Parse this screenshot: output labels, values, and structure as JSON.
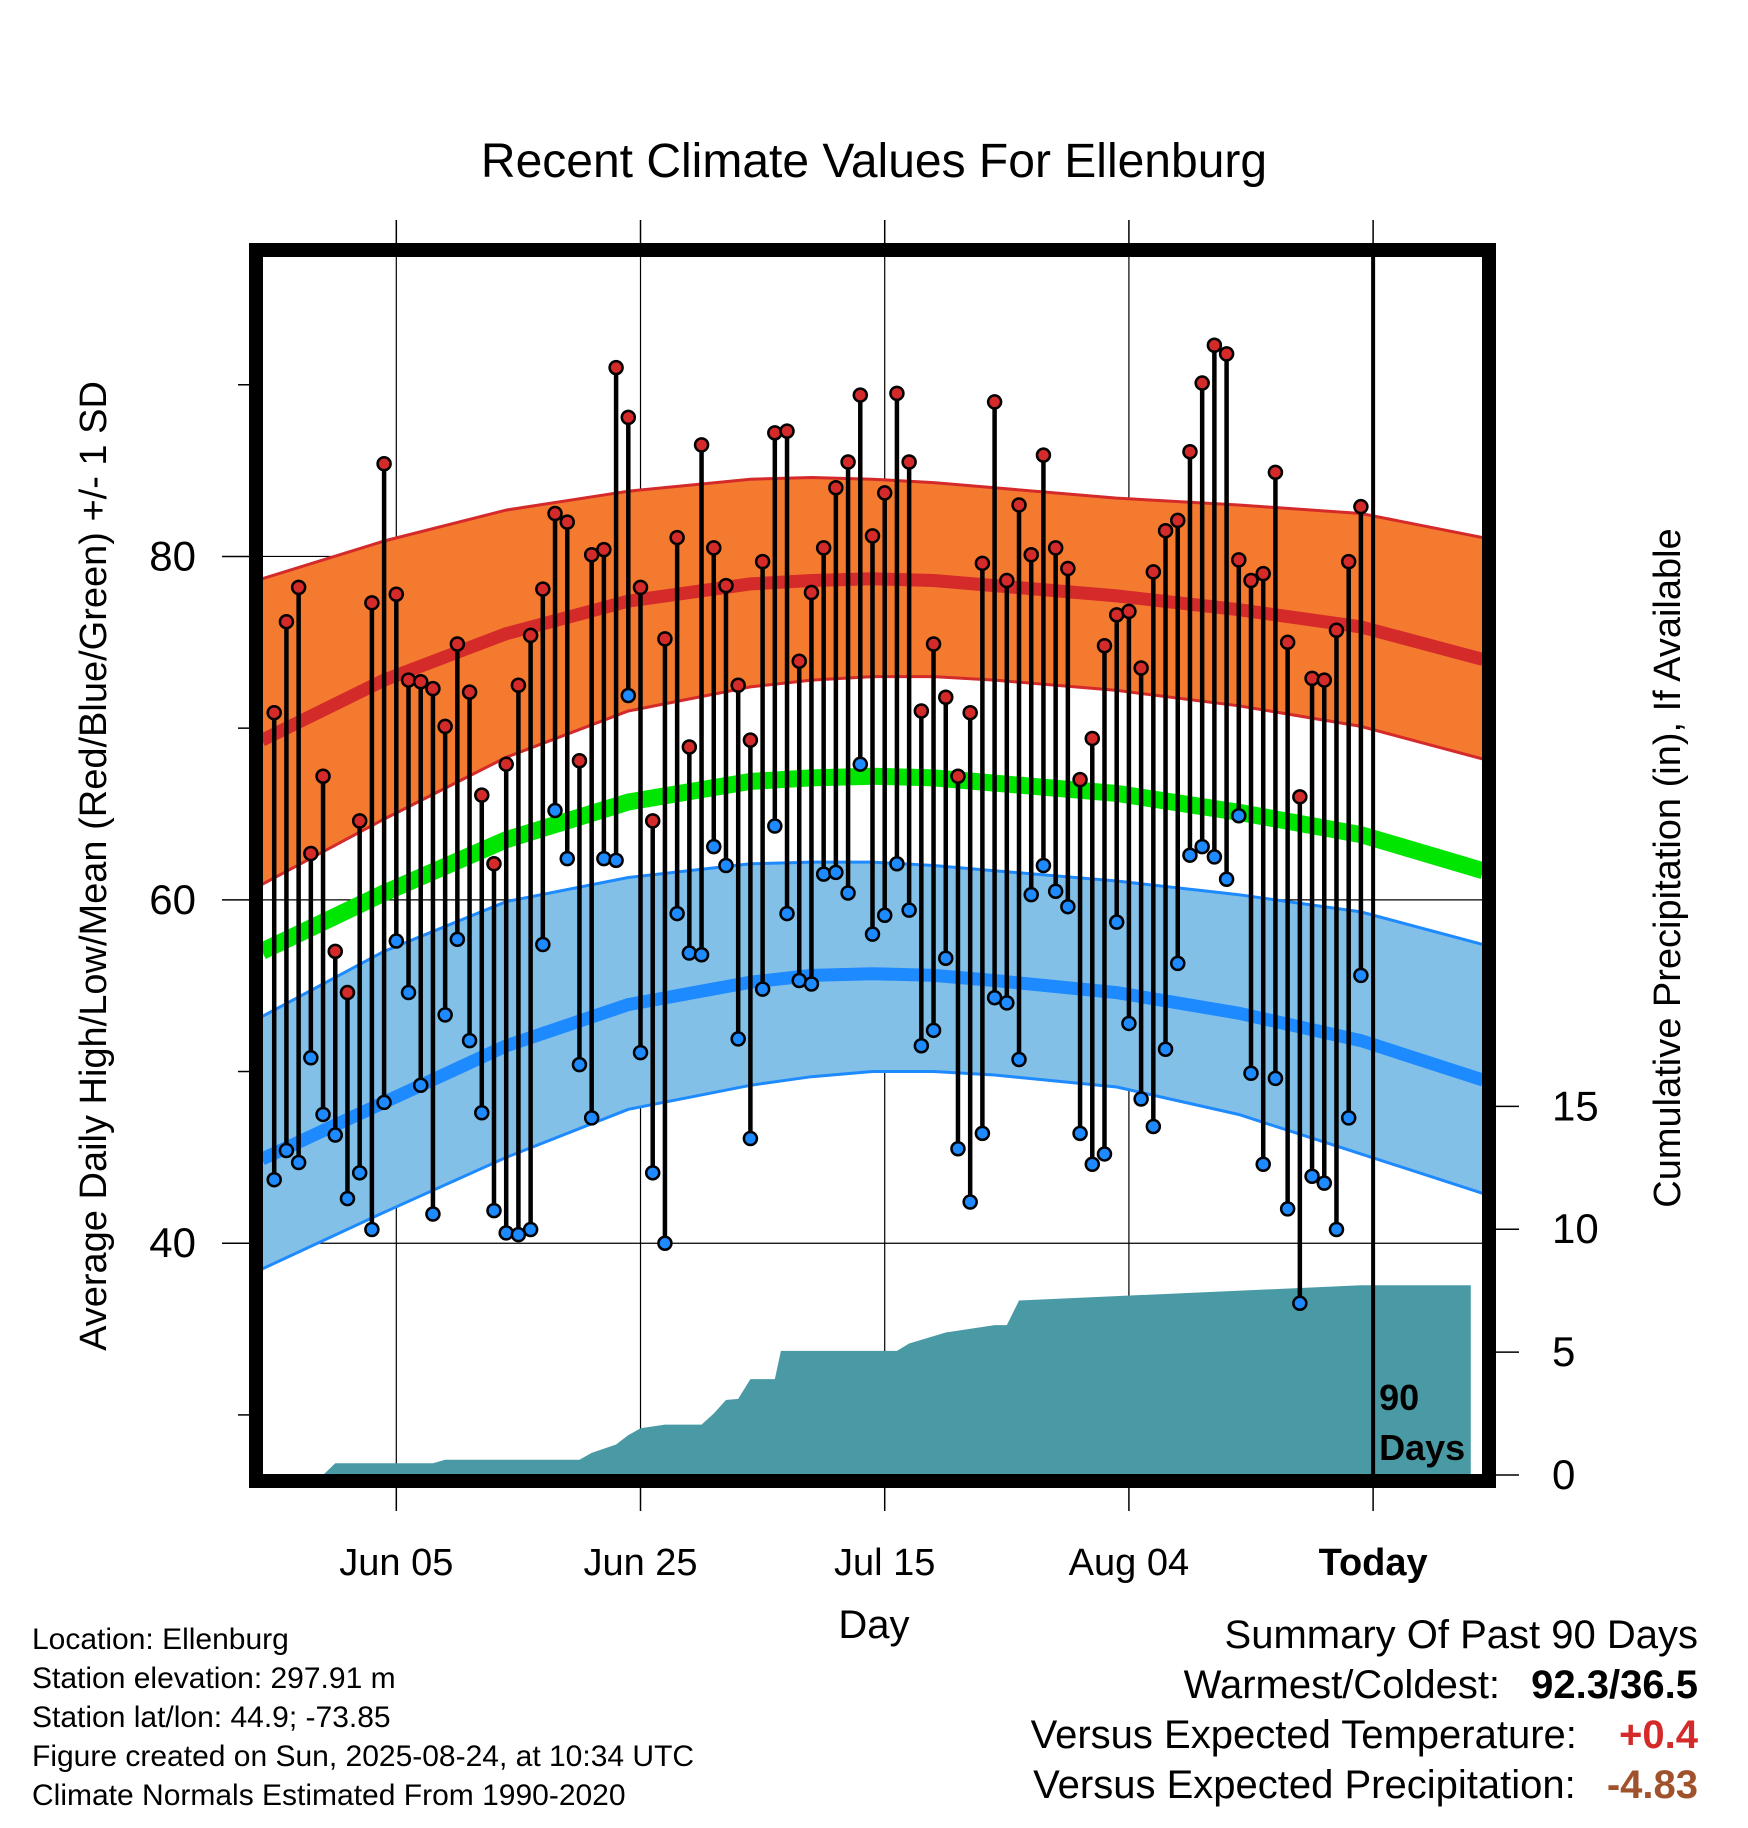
{
  "title": "Recent Climate Values For Ellenburg",
  "colors": {
    "high_band": "#f47a30",
    "high_mean": "#d42a2a",
    "low_band": "#82c0e8",
    "low_mean": "#1e8aff",
    "mean": "#00e600",
    "precip": "#4a9aa5",
    "high_point": "#d42a2a",
    "low_point": "#1e8aff",
    "temp_anomaly": "#d42a2a",
    "precip_anomaly": "#a0522d"
  },
  "chart_data": {
    "type": "line",
    "title": "Recent Climate Values For Ellenburg",
    "xlabel": "Day",
    "ylabel": "Average Daily High/Low/Mean (Red/Blue/Green) +/- 1 SD",
    "ylabel_right": "Cumulative Precipitation (in), If Available",
    "x_tick_labels": [
      "Jun 05",
      "Jun 25",
      "Jul 15",
      "Aug 04",
      "Today"
    ],
    "x_tick_days": [
      11,
      31,
      51,
      71,
      91
    ],
    "x_range_days": [
      0,
      100
    ],
    "ylim": [
      26.5,
      97.5
    ],
    "y_ticks": [
      40,
      60,
      80
    ],
    "y2lim": [
      0,
      49.6
    ],
    "y2_ticks": [
      0,
      5,
      10,
      15
    ],
    "grid": true,
    "today_marker_label": "90 Days",
    "normals": {
      "days": [
        0,
        10,
        20,
        30,
        40,
        45,
        50,
        55,
        60,
        70,
        80,
        90,
        100
      ],
      "high_mean": [
        69.3,
        72.8,
        75.5,
        77.4,
        78.4,
        78.6,
        78.7,
        78.6,
        78.3,
        77.7,
        76.9,
        75.9,
        74.0
      ],
      "high_upper": [
        78.7,
        80.9,
        82.7,
        83.8,
        84.5,
        84.6,
        84.5,
        84.3,
        84.0,
        83.4,
        83.0,
        82.5,
        81.1
      ],
      "high_lower": [
        60.9,
        64.7,
        68.3,
        71.0,
        72.4,
        72.8,
        73.0,
        73.0,
        72.8,
        72.2,
        71.3,
        70.1,
        68.2
      ],
      "low_mean": [
        44.9,
        48.2,
        51.5,
        53.9,
        55.2,
        55.6,
        55.7,
        55.6,
        55.3,
        54.6,
        53.4,
        51.8,
        49.5
      ],
      "low_upper": [
        53.2,
        57.0,
        59.9,
        61.3,
        62.1,
        62.2,
        62.2,
        62.0,
        61.7,
        61.1,
        60.3,
        59.3,
        57.4
      ],
      "low_lower": [
        38.5,
        41.8,
        45.0,
        47.8,
        49.2,
        49.7,
        50.0,
        50.0,
        49.8,
        49.1,
        47.5,
        45.2,
        42.9
      ],
      "mean": [
        57.0,
        60.4,
        63.5,
        65.7,
        66.9,
        67.1,
        67.2,
        67.1,
        66.8,
        66.2,
        65.1,
        63.8,
        61.7
      ]
    },
    "observations": {
      "start_day": 1,
      "high": [
        70.9,
        76.2,
        78.2,
        62.7,
        67.2,
        57.0,
        54.6,
        64.6,
        77.3,
        85.4,
        77.8,
        72.8,
        72.7,
        72.3,
        70.1,
        74.9,
        72.1,
        66.1,
        62.1,
        67.9,
        72.5,
        75.4,
        78.1,
        82.5,
        82.0,
        68.1,
        80.1,
        80.4,
        91.0,
        88.1,
        78.2,
        64.6,
        75.2,
        81.1,
        68.9,
        86.5,
        80.5,
        78.3,
        72.5,
        69.3,
        79.7,
        87.2,
        87.3,
        73.9,
        77.9,
        80.5,
        84.0,
        85.5,
        89.4,
        81.2,
        83.7,
        89.5,
        85.5,
        71.0,
        74.9,
        71.8,
        67.2,
        70.9,
        79.6,
        89.0,
        78.6,
        83.0,
        80.1,
        85.9,
        80.5,
        79.3,
        67.0,
        69.4,
        74.8,
        76.6,
        76.8,
        73.5,
        79.1,
        81.5,
        82.1,
        86.1,
        90.1,
        92.3,
        91.8,
        79.8,
        78.6,
        79.0,
        84.9,
        75.0,
        66.0,
        72.9,
        72.8,
        75.7,
        79.7,
        82.9
      ],
      "low": [
        43.7,
        45.4,
        44.7,
        50.8,
        47.5,
        46.3,
        42.6,
        44.1,
        40.8,
        48.2,
        57.6,
        54.6,
        49.2,
        41.7,
        53.3,
        57.7,
        51.8,
        47.6,
        41.9,
        40.6,
        40.5,
        40.8,
        57.4,
        65.2,
        62.4,
        50.4,
        47.3,
        62.4,
        62.3,
        71.9,
        51.1,
        44.1,
        40.0,
        59.2,
        56.9,
        56.8,
        63.1,
        62.0,
        51.9,
        46.1,
        54.8,
        64.3,
        59.2,
        55.3,
        55.1,
        61.5,
        61.6,
        60.4,
        67.9,
        58.0,
        59.1,
        62.1,
        59.4,
        51.5,
        52.4,
        56.6,
        45.5,
        42.4,
        46.4,
        54.3,
        54.0,
        50.7,
        60.3,
        62.0,
        60.5,
        59.6,
        46.4,
        44.6,
        45.2,
        58.7,
        52.8,
        48.4,
        46.8,
        51.3,
        56.3,
        62.6,
        63.1,
        62.5,
        61.2,
        64.9,
        49.9,
        44.6,
        49.6,
        42.0,
        36.5,
        43.9,
        43.5,
        40.8,
        47.3,
        55.6
      ]
    },
    "cumulative_precipitation": {
      "days": [
        0,
        5,
        6,
        14,
        15,
        26,
        27,
        29,
        30,
        31,
        33,
        36,
        37,
        38,
        39,
        40,
        42,
        42.5,
        48,
        52,
        53,
        56,
        60,
        61,
        62,
        90
      ],
      "inches": [
        0,
        0,
        0.48,
        0.48,
        0.62,
        0.62,
        0.9,
        1.24,
        1.62,
        1.9,
        2.05,
        2.05,
        2.5,
        3.05,
        3.1,
        3.9,
        3.9,
        5.05,
        5.05,
        5.05,
        5.35,
        5.8,
        6.1,
        6.1,
        7.1,
        7.72
      ],
      "end_day": 99
    }
  },
  "footer": {
    "location": "Location: Ellenburg",
    "elevation": "Station elevation: 297.91 m",
    "latlon": "Station lat/lon: 44.9; -73.85",
    "created": "Figure created on Sun, 2025-08-24, at 10:34 UTC",
    "normals": "Climate Normals Estimated From 1990-2020"
  },
  "summary": {
    "heading": "Summary Of Past 90 Days",
    "warm_cold_label": "Warmest/Coldest:",
    "warm_cold_value": "92.3/36.5",
    "temp_label": "Versus Expected Temperature:",
    "temp_value": "+0.4",
    "precip_label": "Versus Expected Precipitation:",
    "precip_value": "-4.83"
  }
}
